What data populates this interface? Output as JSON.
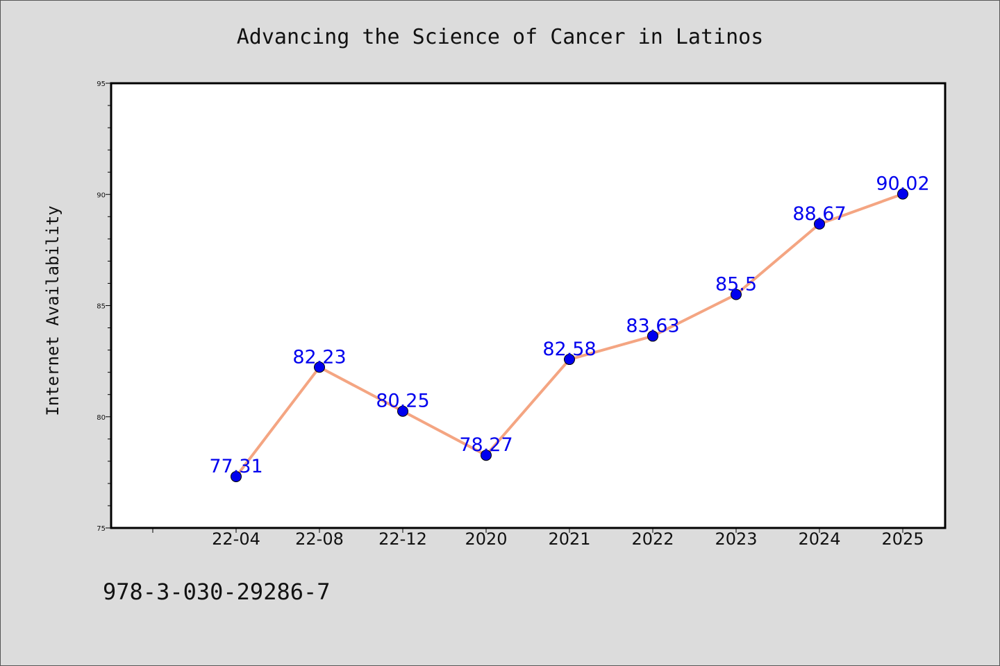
{
  "chart_data": {
    "type": "line",
    "title": "Advancing the Science of Cancer in Latinos",
    "xlabel": "",
    "ylabel": "Internet Availability",
    "categories": [
      "22-04",
      "22-08",
      "22-12",
      "2020",
      "2021",
      "2022",
      "2023",
      "2024",
      "2025"
    ],
    "values": [
      77.31,
      82.23,
      80.25,
      78.27,
      82.58,
      83.63,
      85.5,
      88.67,
      90.02
    ],
    "data_labels": [
      "77.31",
      "82.23",
      "80.25",
      "78.27",
      "82.58",
      "83.63",
      "85.5",
      "88.67",
      "90.02"
    ],
    "ylim": [
      75,
      95
    ],
    "yticks": [
      75,
      80,
      85,
      90,
      95
    ],
    "ytick_labels": [
      "75",
      "80",
      "85",
      "90",
      "95"
    ],
    "grid": false,
    "line_color": "#f4a582",
    "marker_color": "#0000ee",
    "label_color": "#0000ee"
  },
  "footer": {
    "note": "978-3-030-29286-7"
  }
}
